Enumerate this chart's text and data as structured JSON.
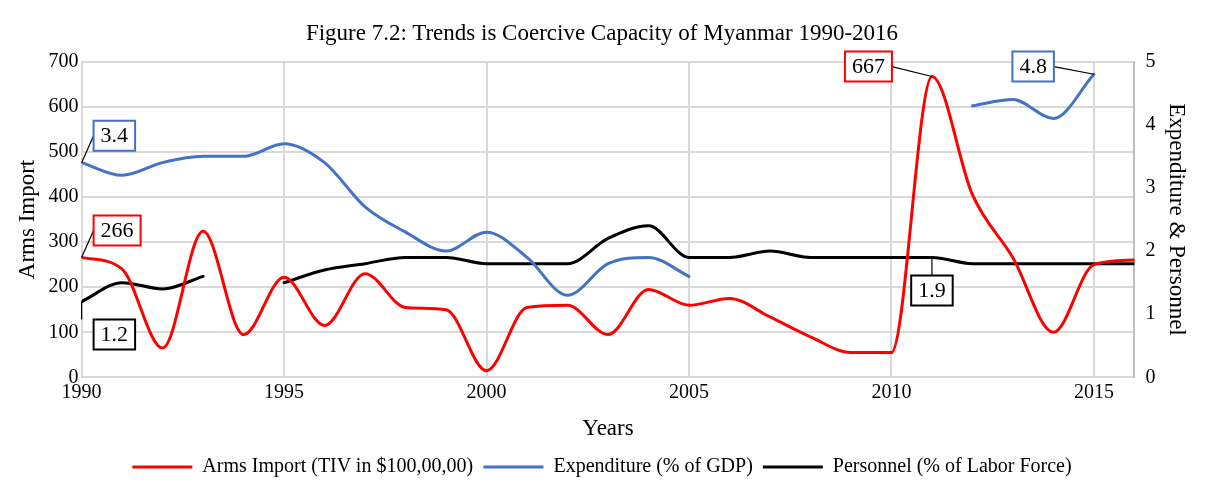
{
  "chart_data": {
    "type": "line",
    "title": "Figure 7.2: Trends is Coercive Capacity of Myanmar 1990-2016",
    "xlabel": "Years",
    "ylabel": "Arms Import",
    "y2label": "Expenditure & Personnel",
    "x": [
      1990,
      1991,
      1992,
      1993,
      1994,
      1995,
      1996,
      1997,
      1998,
      1999,
      2000,
      2001,
      2002,
      2003,
      2004,
      2005,
      2006,
      2007,
      2008,
      2009,
      2010,
      2011,
      2012,
      2013,
      2014,
      2015,
      2016
    ],
    "xlim": [
      1990,
      2016
    ],
    "xticks": [
      1990,
      1995,
      2000,
      2005,
      2010,
      2015
    ],
    "ylim": [
      0,
      700
    ],
    "yticks": [
      0,
      100,
      200,
      300,
      400,
      500,
      600,
      700
    ],
    "y2lim": [
      0,
      5
    ],
    "y2ticks": [
      0,
      1,
      2,
      3,
      4,
      5
    ],
    "grid": true,
    "legend": "bottom",
    "marker": "none",
    "line_style": "solid",
    "series": [
      {
        "name": "Arms Import (TIV in $100,00,00)",
        "color": "#ff0000",
        "values": [
          266,
          240,
          65,
          324,
          95,
          222,
          115,
          230,
          155,
          150,
          15,
          155,
          160,
          95,
          195,
          160,
          175,
          134,
          90,
          55,
          55,
          667,
          405,
          265,
          100,
          250,
          260
        ],
        "value_labels": [
          "266",
          null,
          null,
          null,
          null,
          null,
          null,
          null,
          null,
          null,
          null,
          null,
          null,
          null,
          null,
          null,
          null,
          null,
          null,
          null,
          null,
          "667",
          null,
          null,
          null,
          null,
          null
        ]
      },
      {
        "name": "Expenditure (% of GDP)",
        "color": "#4472c4",
        "axis": "y2",
        "values": [
          3.4,
          3.2,
          3.4,
          3.5,
          3.5,
          3.7,
          3.4,
          2.7,
          2.3,
          2.0,
          2.3,
          1.9,
          1.3,
          1.8,
          1.9,
          1.6,
          null,
          null,
          null,
          null,
          null,
          null,
          4.3,
          4.4,
          4.1,
          4.8,
          null
        ],
        "value_labels": [
          "3.4",
          null,
          null,
          null,
          null,
          null,
          null,
          null,
          null,
          null,
          null,
          null,
          null,
          null,
          null,
          null,
          null,
          null,
          null,
          null,
          null,
          null,
          null,
          null,
          null,
          "4.8",
          null
        ]
      },
      {
        "name": "Personnel (% of Labor Force)",
        "color": "#000000",
        "axis": "y2",
        "values": [
          1.2,
          1.5,
          1.4,
          1.6,
          null,
          1.5,
          1.7,
          1.8,
          1.9,
          1.9,
          1.8,
          1.8,
          1.8,
          2.2,
          2.4,
          1.9,
          1.9,
          2.0,
          1.9,
          1.9,
          1.9,
          1.9,
          1.8,
          1.8,
          1.8,
          1.8,
          1.8
        ],
        "value_labels": [
          "1.2",
          null,
          null,
          null,
          null,
          null,
          null,
          null,
          null,
          null,
          null,
          null,
          null,
          null,
          null,
          null,
          null,
          null,
          null,
          null,
          null,
          "1.9",
          null,
          null,
          null,
          null,
          null
        ]
      }
    ]
  }
}
